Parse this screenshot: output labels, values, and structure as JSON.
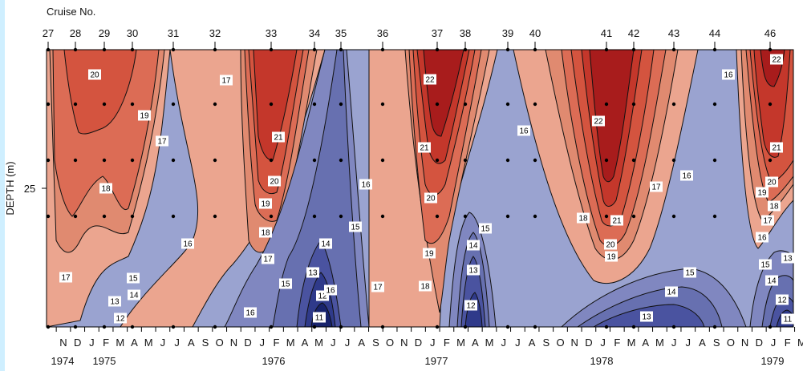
{
  "chart_data": {
    "type": "contour",
    "xlabel_top": "Cruise No.",
    "ylabel": "DEPTH (m)",
    "y_tick": "25",
    "colors": {
      "warm_22": "#a81c1c",
      "warm_21": "#c4372b",
      "warm_20": "#d4543f",
      "warm_19": "#dc6c55",
      "warm_18": "#e08a70",
      "warm_17": "#eba58f",
      "neutral_16": "#9aa3d0",
      "cool_15": "#8087c0",
      "cool_14": "#6770b0",
      "cool_13": "#4a53a0",
      "cool_12": "#2f3a8a",
      "cool_11": "#18236c"
    },
    "cruises": [
      "27",
      "28",
      "29",
      "30",
      "31",
      "32",
      "33",
      "34",
      "35",
      "36",
      "37",
      "38",
      "39",
      "40",
      "41",
      "42",
      "43",
      "44",
      "46"
    ],
    "months": [
      "N",
      "D",
      "J",
      "F",
      "M",
      "A",
      "M",
      "J",
      "J",
      "A",
      "S",
      "O",
      "N",
      "D",
      "J",
      "F",
      "M",
      "A",
      "M",
      "J",
      "J",
      "A",
      "S",
      "O",
      "N",
      "D",
      "J",
      "F",
      "M",
      "A",
      "M",
      "J",
      "J",
      "A",
      "S",
      "O",
      "N",
      "D",
      "J",
      "F",
      "M",
      "A",
      "M",
      "J",
      "J",
      "A",
      "S",
      "O",
      "N",
      "D",
      "J",
      "F",
      "M"
    ],
    "years": [
      "1974",
      "1975",
      "1976",
      "1977",
      "1978",
      "1979"
    ],
    "contour_labels": [
      "20",
      "19",
      "17",
      "18",
      "17",
      "16",
      "15",
      "14",
      "13",
      "12",
      "17",
      "21",
      "20",
      "19",
      "18",
      "17",
      "16",
      "15",
      "14",
      "13",
      "12",
      "11",
      "16",
      "15",
      "16",
      "17",
      "22",
      "21",
      "20",
      "19",
      "18",
      "15",
      "14",
      "13",
      "12",
      "16",
      "16",
      "17",
      "22",
      "18",
      "21",
      "20",
      "19",
      "15",
      "14",
      "13",
      "16",
      "22",
      "21",
      "20",
      "19",
      "18",
      "17",
      "16",
      "15",
      "13",
      "14",
      "12",
      "11"
    ]
  }
}
